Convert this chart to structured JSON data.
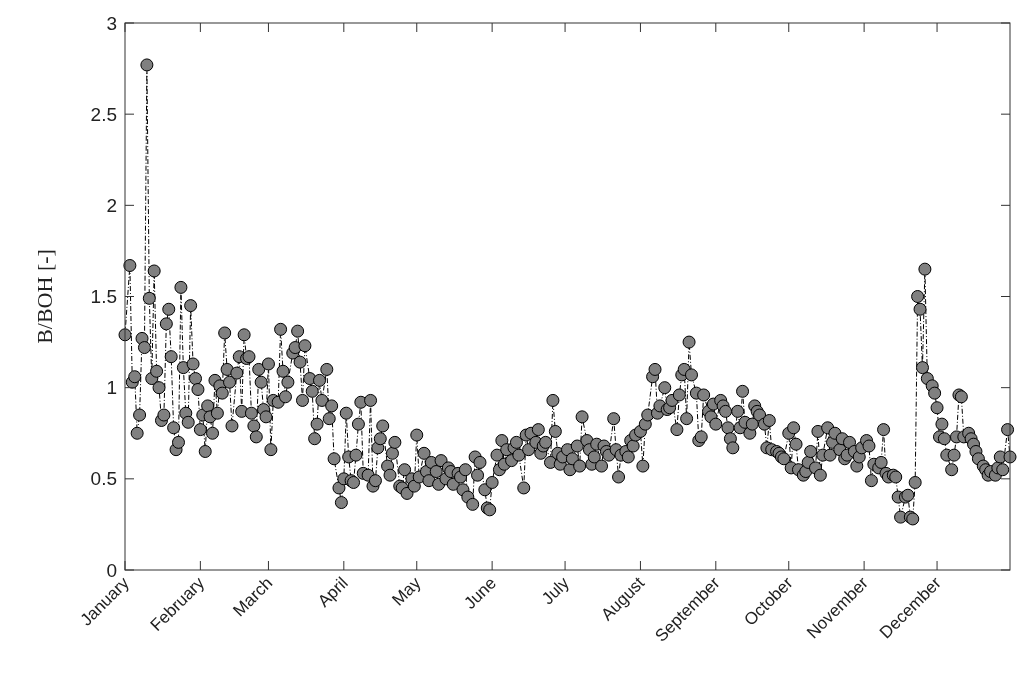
{
  "chart_data": {
    "type": "line",
    "ylabel": "B/BOH [-]",
    "xlim": [
      "--01-01",
      "--12-31"
    ],
    "ylim": [
      0,
      3
    ],
    "xticks": [
      {
        "value": "--01-01",
        "label": "January"
      },
      {
        "value": "--02-01",
        "label": "February"
      },
      {
        "value": "--03-01",
        "label": "March"
      },
      {
        "value": "--04-01",
        "label": "April"
      },
      {
        "value": "--05-01",
        "label": "May"
      },
      {
        "value": "--06-01",
        "label": "June"
      },
      {
        "value": "--07-01",
        "label": "July"
      },
      {
        "value": "--08-01",
        "label": "August"
      },
      {
        "value": "--09-01",
        "label": "September"
      },
      {
        "value": "--10-01",
        "label": "October"
      },
      {
        "value": "--11-01",
        "label": "November"
      },
      {
        "value": "--12-01",
        "label": "December"
      }
    ],
    "yticks": [
      0,
      0.5,
      1,
      1.5,
      2,
      2.5,
      3
    ],
    "grid": false,
    "legend": false,
    "marker": "circle",
    "line_style": "dashed",
    "series": [
      {
        "color": "#808080",
        "x": [
          "--01-01",
          "--01-03",
          "--01-04",
          "--01-05",
          "--01-06",
          "--01-07",
          "--01-08",
          "--01-09",
          "--01-10",
          "--01-11",
          "--01-12",
          "--01-13",
          "--01-14",
          "--01-15",
          "--01-16",
          "--01-17",
          "--01-18",
          "--01-19",
          "--01-20",
          "--01-21",
          "--01-22",
          "--01-23",
          "--01-24",
          "--01-25",
          "--01-26",
          "--01-27",
          "--01-28",
          "--01-29",
          "--01-30",
          "--01-31",
          "--02-01",
          "--02-02",
          "--02-03",
          "--02-04",
          "--02-05",
          "--02-06",
          "--02-07",
          "--02-08",
          "--02-09",
          "--02-10",
          "--02-11",
          "--02-12",
          "--02-13",
          "--02-14",
          "--02-16",
          "--02-17",
          "--02-18",
          "--02-19",
          "--02-20",
          "--02-21",
          "--02-22",
          "--02-23",
          "--02-24",
          "--02-25",
          "--02-26",
          "--02-27",
          "--02-28",
          "--03-01",
          "--03-02",
          "--03-03",
          "--03-05",
          "--03-06",
          "--03-07",
          "--03-08",
          "--03-09",
          "--03-11",
          "--03-12",
          "--03-13",
          "--03-14",
          "--03-15",
          "--03-16",
          "--03-18",
          "--03-19",
          "--03-20",
          "--03-21",
          "--03-22",
          "--03-23",
          "--03-25",
          "--03-26",
          "--03-27",
          "--03-28",
          "--03-30",
          "--03-31",
          "--04-01",
          "--04-02",
          "--04-03",
          "--04-04",
          "--04-05",
          "--04-06",
          "--04-07",
          "--04-08",
          "--04-09",
          "--04-11",
          "--04-12",
          "--04-13",
          "--04-14",
          "--04-15",
          "--04-16",
          "--04-17",
          "--04-19",
          "--04-20",
          "--04-21",
          "--04-22",
          "--04-24",
          "--04-25",
          "--04-26",
          "--04-27",
          "--04-29",
          "--04-30",
          "--05-01",
          "--05-02",
          "--05-04",
          "--05-05",
          "--05-06",
          "--05-07",
          "--05-09",
          "--05-10",
          "--05-11",
          "--05-13",
          "--05-14",
          "--05-15",
          "--05-16",
          "--05-18",
          "--05-19",
          "--05-20",
          "--05-21",
          "--05-22",
          "--05-24",
          "--05-25",
          "--05-26",
          "--05-27",
          "--05-29",
          "--05-30",
          "--05-31",
          "--06-01",
          "--06-03",
          "--06-04",
          "--06-05",
          "--06-06",
          "--06-07",
          "--06-09",
          "--06-10",
          "--06-11",
          "--06-12",
          "--06-14",
          "--06-15",
          "--06-16",
          "--06-17",
          "--06-19",
          "--06-20",
          "--06-21",
          "--06-22",
          "--06-23",
          "--06-25",
          "--06-26",
          "--06-27",
          "--06-28",
          "--06-29",
          "--06-30",
          "--07-02",
          "--07-03",
          "--07-04",
          "--07-06",
          "--07-07",
          "--07-08",
          "--07-10",
          "--07-11",
          "--07-12",
          "--07-13",
          "--07-14",
          "--07-16",
          "--07-17",
          "--07-18",
          "--07-19",
          "--07-21",
          "--07-22",
          "--07-23",
          "--07-24",
          "--07-26",
          "--07-27",
          "--07-28",
          "--07-29",
          "--07-30",
          "--08-01",
          "--08-02",
          "--08-03",
          "--08-04",
          "--08-06",
          "--08-07",
          "--08-08",
          "--08-09",
          "--08-11",
          "--08-12",
          "--08-13",
          "--08-14",
          "--08-16",
          "--08-17",
          "--08-18",
          "--08-19",
          "--08-20",
          "--08-21",
          "--08-22",
          "--08-24",
          "--08-25",
          "--08-26",
          "--08-27",
          "--08-29",
          "--08-30",
          "--08-31",
          "--09-01",
          "--09-03",
          "--09-04",
          "--09-05",
          "--09-06",
          "--09-07",
          "--09-08",
          "--09-10",
          "--09-11",
          "--09-12",
          "--09-13",
          "--09-15",
          "--09-16",
          "--09-17",
          "--09-18",
          "--09-19",
          "--09-21",
          "--09-22",
          "--09-23",
          "--09-24",
          "--09-26",
          "--09-27",
          "--09-28",
          "--09-29",
          "--10-01",
          "--10-02",
          "--10-03",
          "--10-04",
          "--10-05",
          "--10-07",
          "--10-08",
          "--10-09",
          "--10-10",
          "--10-12",
          "--10-13",
          "--10-14",
          "--10-15",
          "--10-17",
          "--10-18",
          "--10-19",
          "--10-20",
          "--10-22",
          "--10-23",
          "--10-24",
          "--10-25",
          "--10-26",
          "--10-28",
          "--10-29",
          "--10-30",
          "--10-31",
          "--11-02",
          "--11-03",
          "--11-04",
          "--11-05",
          "--11-07",
          "--11-08",
          "--11-09",
          "--11-10",
          "--11-11",
          "--11-13",
          "--11-14",
          "--11-15",
          "--11-16",
          "--11-18",
          "--11-19",
          "--11-20",
          "--11-21",
          "--11-22",
          "--11-23",
          "--11-24",
          "--11-25",
          "--11-26",
          "--11-27",
          "--11-29",
          "--11-30",
          "--12-01",
          "--12-02",
          "--12-03",
          "--12-04",
          "--12-05",
          "--12-07",
          "--12-08",
          "--12-09",
          "--12-10",
          "--12-11",
          "--12-12",
          "--12-14",
          "--12-15",
          "--12-16",
          "--12-17",
          "--12-18",
          "--12-20",
          "--12-21",
          "--12-22",
          "--12-23",
          "--12-25",
          "--12-26",
          "--12-27",
          "--12-28",
          "--12-30",
          "--12-31"
        ],
        "values": [
          1.29,
          1.67,
          1.03,
          1.06,
          0.75,
          0.85,
          1.27,
          1.22,
          2.77,
          1.49,
          1.05,
          1.64,
          1.09,
          1.0,
          0.82,
          0.85,
          1.35,
          1.43,
          1.17,
          0.78,
          0.66,
          0.7,
          1.55,
          1.11,
          0.86,
          0.81,
          1.45,
          1.13,
          1.05,
          0.99,
          0.77,
          0.85,
          0.65,
          0.9,
          0.84,
          0.75,
          1.04,
          0.86,
          1.01,
          0.97,
          1.3,
          1.1,
          1.03,
          0.79,
          1.08,
          1.17,
          0.87,
          1.29,
          1.16,
          1.17,
          0.86,
          0.79,
          0.73,
          1.1,
          1.03,
          0.88,
          0.84,
          1.13,
          0.66,
          0.93,
          0.92,
          1.32,
          1.09,
          0.95,
          1.03,
          1.19,
          1.22,
          1.31,
          1.14,
          0.93,
          1.23,
          1.05,
          0.98,
          0.72,
          0.8,
          1.04,
          0.93,
          1.1,
          0.83,
          0.9,
          0.61,
          0.45,
          0.37,
          0.5,
          0.86,
          0.62,
          0.49,
          0.48,
          0.63,
          0.8,
          0.92,
          0.53,
          0.52,
          0.93,
          0.46,
          0.49,
          0.67,
          0.72,
          0.79,
          0.57,
          0.52,
          0.64,
          0.7,
          0.46,
          0.45,
          0.55,
          0.42,
          0.5,
          0.46,
          0.74,
          0.51,
          0.64,
          0.54,
          0.49,
          0.59,
          0.54,
          0.47,
          0.6,
          0.5,
          0.56,
          0.54,
          0.47,
          0.53,
          0.51,
          0.44,
          0.55,
          0.4,
          0.36,
          0.62,
          0.52,
          0.59,
          0.44,
          0.34,
          0.33,
          0.48,
          0.63,
          0.55,
          0.71,
          0.58,
          0.66,
          0.6,
          0.67,
          0.7,
          0.63,
          0.45,
          0.74,
          0.66,
          0.75,
          0.7,
          0.77,
          0.64,
          0.68,
          0.7,
          0.59,
          0.93,
          0.76,
          0.64,
          0.58,
          0.62,
          0.66,
          0.55,
          0.61,
          0.68,
          0.57,
          0.84,
          0.71,
          0.66,
          0.58,
          0.62,
          0.69,
          0.57,
          0.68,
          0.65,
          0.63,
          0.83,
          0.66,
          0.51,
          0.63,
          0.65,
          0.62,
          0.71,
          0.68,
          0.74,
          0.76,
          0.57,
          0.8,
          0.85,
          1.06,
          1.1,
          0.86,
          0.9,
          1.0,
          0.88,
          0.89,
          0.93,
          0.77,
          0.96,
          1.07,
          1.1,
          0.83,
          1.25,
          1.07,
          0.97,
          0.71,
          0.73,
          0.96,
          0.87,
          0.84,
          0.91,
          0.8,
          0.93,
          0.9,
          0.87,
          0.78,
          0.72,
          0.67,
          0.87,
          0.78,
          0.98,
          0.81,
          0.75,
          0.8,
          0.9,
          0.87,
          0.85,
          0.8,
          0.67,
          0.82,
          0.66,
          0.65,
          0.64,
          0.62,
          0.61,
          0.75,
          0.56,
          0.78,
          0.69,
          0.55,
          0.52,
          0.54,
          0.59,
          0.65,
          0.56,
          0.76,
          0.52,
          0.63,
          0.78,
          0.63,
          0.7,
          0.75,
          0.66,
          0.72,
          0.61,
          0.63,
          0.7,
          0.65,
          0.57,
          0.62,
          0.67,
          0.71,
          0.68,
          0.49,
          0.58,
          0.56,
          0.59,
          0.77,
          0.53,
          0.51,
          0.52,
          0.51,
          0.4,
          0.29,
          0.4,
          0.41,
          0.29,
          0.28,
          0.48,
          1.5,
          1.43,
          1.11,
          1.65,
          1.05,
          1.01,
          0.97,
          0.89,
          0.73,
          0.8,
          0.72,
          0.63,
          0.55,
          0.63,
          0.73,
          0.96,
          0.95,
          0.73,
          0.75,
          0.72,
          0.69,
          0.65,
          0.61,
          0.57,
          0.55,
          0.52,
          0.54,
          0.52,
          0.56,
          0.62,
          0.55,
          0.77,
          0.62
        ]
      }
    ]
  }
}
